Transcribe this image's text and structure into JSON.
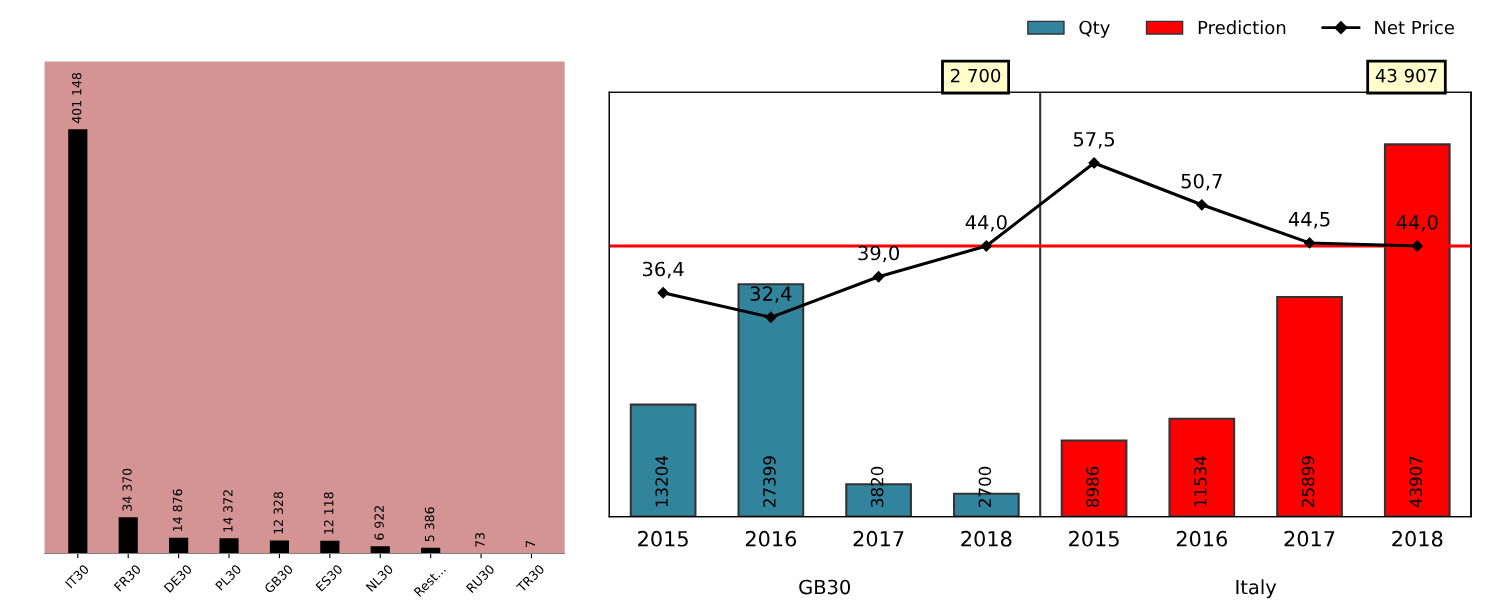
{
  "chart_data": [
    {
      "type": "bar",
      "categories": [
        "IT30",
        "FR30",
        "DE30",
        "PL30",
        "GB30",
        "ES30",
        "NL30",
        "Rest...",
        "RU30",
        "TR30"
      ],
      "values": [
        401148,
        34370,
        14876,
        14372,
        12328,
        12118,
        6922,
        5386,
        73,
        7
      ],
      "value_labels": [
        "401 148",
        "34 370",
        "14 876",
        "14 372",
        "12 328",
        "12 118",
        "6 922",
        "5 386",
        "73",
        "7"
      ],
      "color": "#000000",
      "grid": false,
      "legend": false
    },
    {
      "type": "bar",
      "categories": [
        "2015",
        "2016",
        "2017",
        "2018",
        "2015",
        "2016",
        "2017",
        "2018"
      ],
      "series": [
        {
          "name": "Qty",
          "color": "#31849b",
          "values": [
            13204,
            27399,
            3820,
            2700,
            null,
            null,
            null,
            null
          ]
        },
        {
          "name": "Prediction",
          "color": "#ff0000",
          "values": [
            null,
            null,
            null,
            null,
            8986,
            11534,
            25899,
            43907
          ]
        },
        {
          "name": "Net Price",
          "type": "line",
          "axis": "y2",
          "color": "#000000",
          "marker": "diamond",
          "values": [
            36.4,
            32.4,
            39.0,
            44.0,
            57.5,
            50.7,
            44.5,
            44.0
          ],
          "value_labels": [
            "36,4",
            "32,4",
            "39,0",
            "44,0",
            "57,5",
            "50,7",
            "44,5",
            "44,0"
          ]
        }
      ],
      "data_labels": true,
      "ref_lines": [
        {
          "axis": "y2",
          "value": 44.0,
          "color": "#ff0000"
        }
      ],
      "annotations": [
        "GB30",
        "2 700",
        "Italy",
        "43 907"
      ],
      "grid": false,
      "legend": "top right"
    }
  ]
}
